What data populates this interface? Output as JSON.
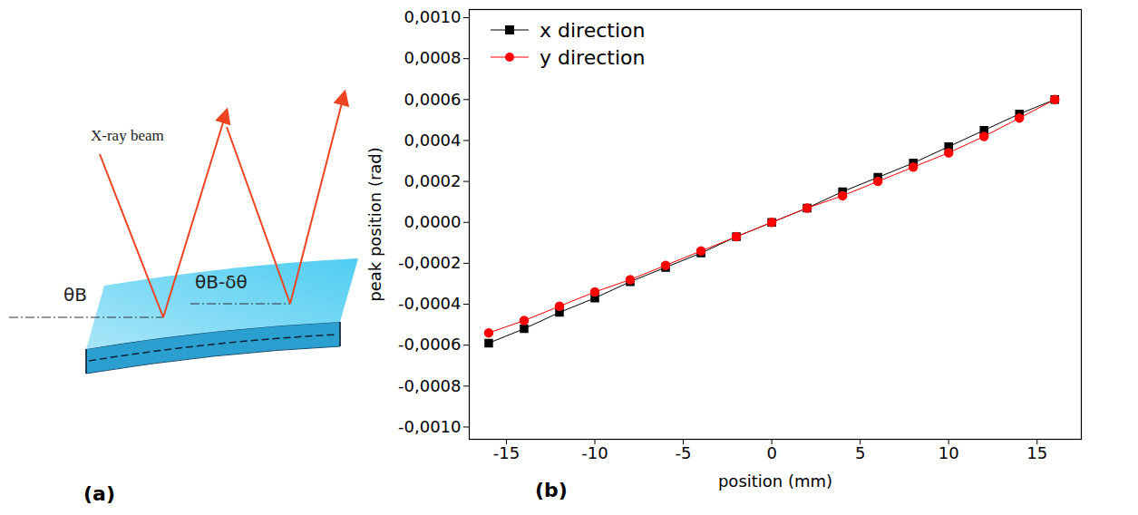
{
  "diagram": {
    "panel_label": "(a)",
    "beam_label": "X-ray beam",
    "angle_labels": [
      "θB",
      "θB-δθ"
    ]
  },
  "chart_data": {
    "type": "line",
    "panel_label": "(b)",
    "x_label": "position (mm)",
    "y_label": "peak position (rad)",
    "x": [
      -16,
      -14,
      -12,
      -10,
      -8,
      -6,
      -4,
      -2,
      0,
      2,
      4,
      6,
      8,
      10,
      12,
      14,
      16
    ],
    "series": [
      {
        "name": "x direction",
        "color": "#000000",
        "marker": "square",
        "values": [
          -0.00059,
          -0.00052,
          -0.00044,
          -0.00037,
          -0.00029,
          -0.00022,
          -0.00015,
          -7e-05,
          0,
          7e-05,
          0.00015,
          0.00022,
          0.00029,
          0.00037,
          0.00045,
          0.00053,
          0.0006
        ]
      },
      {
        "name": "y direction",
        "color": "#ff0000",
        "marker": "circle",
        "values": [
          -0.00054,
          -0.00048,
          -0.00041,
          -0.00034,
          -0.00028,
          -0.00021,
          -0.00014,
          -7e-05,
          0,
          7e-05,
          0.00013,
          0.0002,
          0.00027,
          0.00034,
          0.00042,
          0.00051,
          0.0006
        ]
      }
    ],
    "xlim": [
      -17.1,
      17.5
    ],
    "xticks": [
      -15,
      -10,
      -5,
      0,
      5,
      10,
      15
    ],
    "ylim": [
      -0.00106,
      0.00104
    ],
    "yticks": [
      {
        "value": -0.001,
        "label": "-0,0010"
      },
      {
        "value": -0.0008,
        "label": "-0,0008"
      },
      {
        "value": -0.0006,
        "label": "-0,0006"
      },
      {
        "value": -0.0004,
        "label": "-0,0004"
      },
      {
        "value": -0.0002,
        "label": "-0,0002"
      },
      {
        "value": 0,
        "label": "0,0000"
      },
      {
        "value": 0.0002,
        "label": "0,0002"
      },
      {
        "value": 0.0004,
        "label": "0,0004"
      },
      {
        "value": 0.0006,
        "label": "0,0006"
      },
      {
        "value": 0.0008,
        "label": "0,0008"
      },
      {
        "value": 0.001,
        "label": "0,0010"
      }
    ],
    "grid": false,
    "legend": "upper left"
  }
}
